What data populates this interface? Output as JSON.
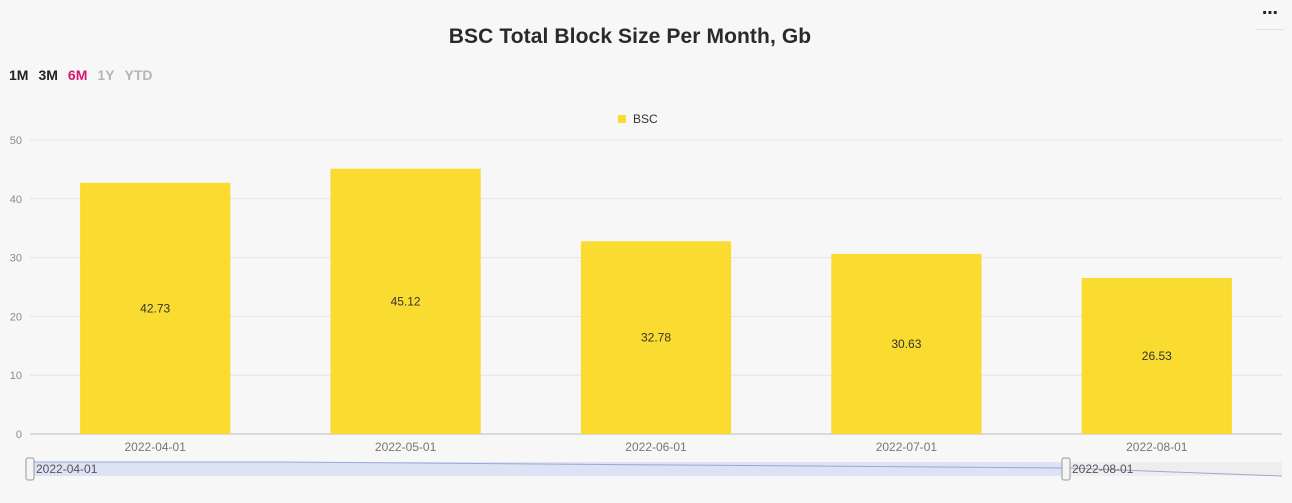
{
  "header": {
    "title": "BSC Total Block Size Per Month, Gb",
    "menu_label": "⋯"
  },
  "range_selector": {
    "buttons": [
      {
        "label": "1M",
        "state": "normal"
      },
      {
        "label": "3M",
        "state": "normal"
      },
      {
        "label": "6M",
        "state": "active"
      },
      {
        "label": "1Y",
        "state": "disabled"
      },
      {
        "label": "YTD",
        "state": "disabled"
      }
    ]
  },
  "colors": {
    "bar": "#f9dc2f",
    "active_range": "#d6166f",
    "navigator_fill": "#dde2f5"
  },
  "chart_data": {
    "type": "bar",
    "title": "BSC Total Block Size Per Month, Gb",
    "categories": [
      "2022-04-01",
      "2022-05-01",
      "2022-06-01",
      "2022-07-01",
      "2022-08-01"
    ],
    "series": [
      {
        "name": "BSC",
        "values": [
          42.73,
          45.12,
          32.78,
          30.63,
          26.53
        ]
      }
    ],
    "ylim": [
      0,
      50
    ],
    "yticks": [
      0,
      10,
      20,
      30,
      40,
      50
    ],
    "xlabel": "",
    "ylabel": "",
    "grid": true,
    "legend_position": "top-center",
    "data_labels": [
      "42.73",
      "45.12",
      "32.78",
      "30.63",
      "26.53"
    ],
    "navigator": {
      "start_label": "2022-04-01",
      "end_label": "2022-08-01"
    }
  }
}
